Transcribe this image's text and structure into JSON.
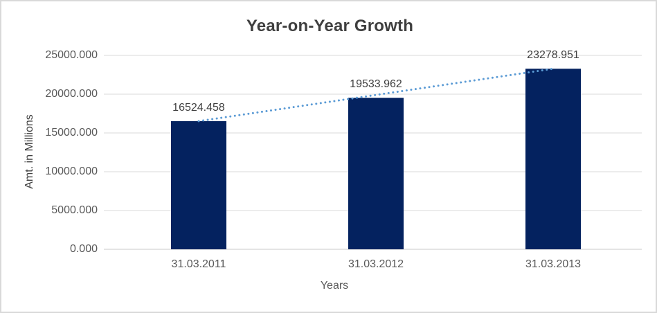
{
  "chart_data": {
    "type": "bar",
    "title": "Year-on-Year Growth",
    "xlabel": "Years",
    "ylabel": "Amt. in Millions",
    "categories": [
      "31.03.2011",
      "31.03.2012",
      "31.03.2013"
    ],
    "values": [
      16524.458,
      19533.962,
      23278.951
    ],
    "data_labels": [
      "16524.458",
      "19533.962",
      "23278.951"
    ],
    "ylim": [
      0,
      25000
    ],
    "ytick_step": 5000,
    "ytick_labels": [
      "0.000",
      "5000.000",
      "10000.000",
      "15000.000",
      "20000.000",
      "25000.000"
    ],
    "grid": true,
    "legend_position": "none",
    "trendline": {
      "type": "linear",
      "style": "dotted",
      "color": "#5B9BD5"
    },
    "colors": {
      "bar": "#04225F",
      "gridline": "#D9D9D9",
      "axis_line": "#C9C9C9",
      "border": "#D9D9D9",
      "title_text": "#3F3F3F",
      "axis_title_text": "#404040",
      "tick_text": "#595959",
      "data_label_text": "#3F3F3F"
    }
  }
}
